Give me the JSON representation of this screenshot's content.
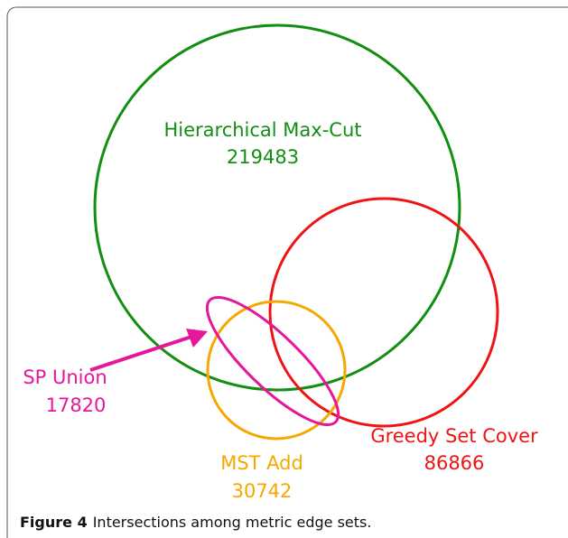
{
  "sets": [
    {
      "name": "Hierarchical Max-Cut",
      "size": "219483"
    },
    {
      "name": "Greedy Set Cover",
      "size": "86866"
    },
    {
      "name": "MST Add",
      "size": "30742"
    },
    {
      "name": "SP Union",
      "size": "17820"
    }
  ],
  "caption": {
    "label": "Figure 4",
    "text": "Intersections among metric edge sets."
  }
}
